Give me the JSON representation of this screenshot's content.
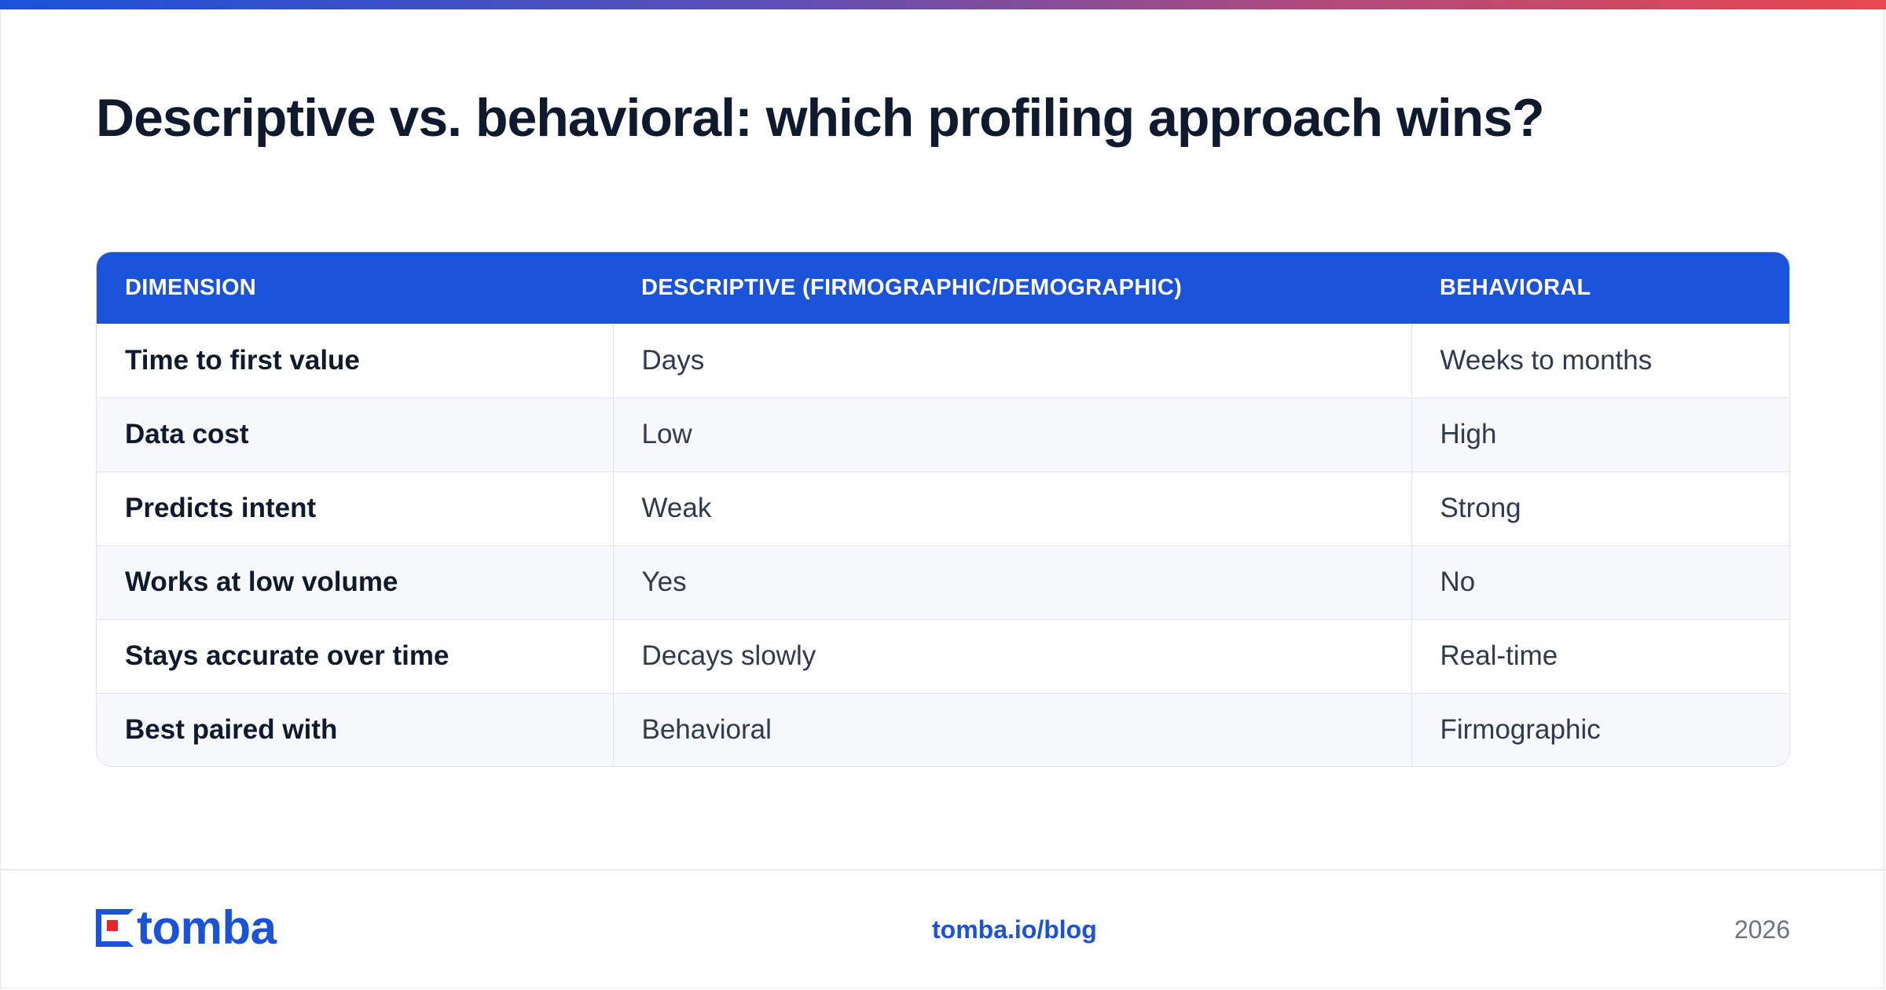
{
  "page": {
    "title": "Descriptive vs. behavioral: which profiling approach wins?"
  },
  "table": {
    "headers": [
      "DIMENSION",
      "DESCRIPTIVE (FIRMOGRAPHIC/DEMOGRAPHIC)",
      "BEHAVIORAL"
    ],
    "rows": [
      [
        "Time to first value",
        "Days",
        "Weeks to months"
      ],
      [
        "Data cost",
        "Low",
        "High"
      ],
      [
        "Predicts intent",
        "Weak",
        "Strong"
      ],
      [
        "Works at low volume",
        "Yes",
        "No"
      ],
      [
        "Stays accurate over time",
        "Decays slowly",
        "Real-time"
      ],
      [
        "Best paired with",
        "Behavioral",
        "Firmographic"
      ]
    ]
  },
  "footer": {
    "logo_text": "tomba",
    "link": "tomba.io/blog",
    "year": "2026"
  },
  "colors": {
    "brand_blue": "#1a52d8",
    "brand_red": "#e8242c",
    "title": "#0f1a2e",
    "body_text": "#2f3a4c"
  },
  "icons": {
    "logo_mark": "tomba-logo-icon"
  }
}
